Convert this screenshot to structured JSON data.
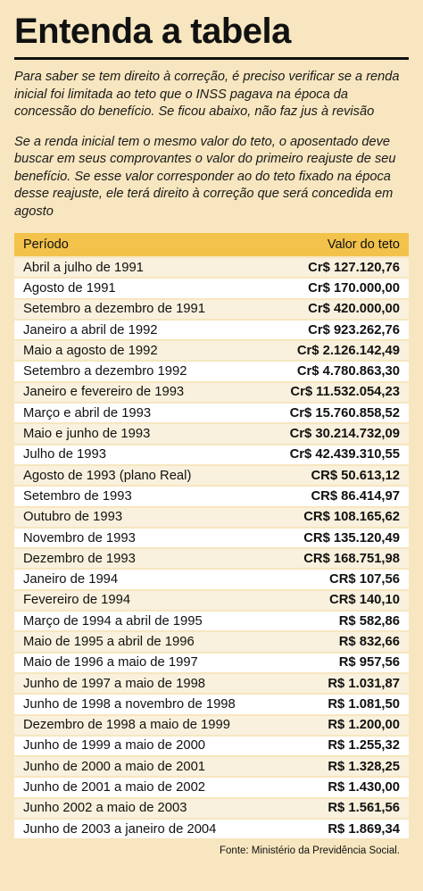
{
  "title": "Entenda a tabela",
  "intro1": "Para saber se tem direito à correção, é preciso verificar se a renda inicial foi limitada ao teto que o INSS pagava na época da concessão do benefício. Se ficou abaixo, não faz jus à revisão",
  "intro2": "Se a renda inicial tem o mesmo valor do teto, o aposentado deve buscar em seus comprovantes o valor do primeiro reajuste de seu benefício. Se esse valor corresponder ao do teto fixado na época desse reajuste, ele terá direito à correção que será concedida em agosto",
  "table": {
    "headers": {
      "period": "Período",
      "value": "Valor do teto"
    },
    "rows": [
      {
        "period": "Abril a julho de 1991",
        "value": "Cr$ 127.120,76"
      },
      {
        "period": "Agosto de 1991",
        "value": "Cr$ 170.000,00"
      },
      {
        "period": "Setembro a dezembro de 1991",
        "value": "Cr$ 420.000,00"
      },
      {
        "period": "Janeiro a abril de 1992",
        "value": "Cr$ 923.262,76"
      },
      {
        "period": "Maio a agosto de 1992",
        "value": "Cr$ 2.126.142,49"
      },
      {
        "period": "Setembro a dezembro 1992",
        "value": "Cr$ 4.780.863,30"
      },
      {
        "period": "Janeiro e fevereiro de 1993",
        "value": "Cr$ 11.532.054,23"
      },
      {
        "period": "Março e abril de 1993",
        "value": "Cr$ 15.760.858,52"
      },
      {
        "period": "Maio e junho de 1993",
        "value": "Cr$ 30.214.732,09"
      },
      {
        "period": "Julho de 1993",
        "value": "Cr$ 42.439.310,55"
      },
      {
        "period": "Agosto de 1993 (plano Real)",
        "value": "CR$ 50.613,12"
      },
      {
        "period": "Setembro de 1993",
        "value": "CR$ 86.414,97"
      },
      {
        "period": "Outubro de 1993",
        "value": "CR$ 108.165,62"
      },
      {
        "period": "Novembro de 1993",
        "value": "CR$ 135.120,49"
      },
      {
        "period": "Dezembro de 1993",
        "value": "CR$ 168.751,98"
      },
      {
        "period": "Janeiro de 1994",
        "value": "CR$ 107,56"
      },
      {
        "period": "Fevereiro de 1994",
        "value": "CR$ 140,10"
      },
      {
        "period": "Março de 1994 a abril de 1995",
        "value": "R$ 582,86"
      },
      {
        "period": "Maio de 1995 a abril de 1996",
        "value": "R$ 832,66"
      },
      {
        "period": "Maio de 1996 a maio de 1997",
        "value": "R$ 957,56"
      },
      {
        "period": "Junho de 1997 a maio de 1998",
        "value": "R$ 1.031,87"
      },
      {
        "period": "Junho de 1998 a novembro de 1998",
        "value": "R$ 1.081,50"
      },
      {
        "period": "Dezembro de 1998 a maio de 1999",
        "value": "R$ 1.200,00"
      },
      {
        "period": "Junho de 1999 a maio de 2000",
        "value": "R$ 1.255,32"
      },
      {
        "period": "Junho de 2000 a maio de 2001",
        "value": "R$ 1.328,25"
      },
      {
        "period": "Junho de 2001 a maio de 2002",
        "value": "R$ 1.430,00"
      },
      {
        "period": "Junho 2002 a maio de 2003",
        "value": "R$ 1.561,56"
      },
      {
        "period": "Junho de 2003 a janeiro de 2004",
        "value": "R$ 1.869,34"
      }
    ]
  },
  "source": "Fonte: Ministério da Previdência Social."
}
